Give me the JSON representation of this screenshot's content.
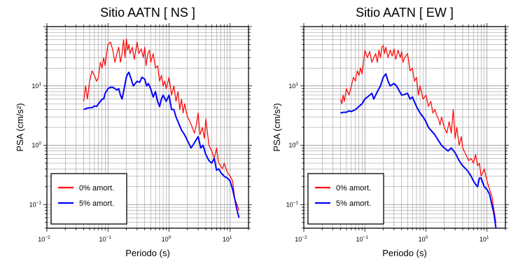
{
  "chart_data": [
    {
      "type": "line",
      "title": "Sitio AATN [ NS ]",
      "xlabel": "Periodo (s)",
      "ylabel": "PSA (cm/s²)",
      "xscale": "log",
      "yscale": "log",
      "xlim": [
        0.01,
        20
      ],
      "ylim": [
        0.04,
        100
      ],
      "x_ticks": [
        {
          "base": "10",
          "exp": "−2",
          "value": 0.01
        },
        {
          "base": "10",
          "exp": "−1",
          "value": 0.1
        },
        {
          "base": "10",
          "exp": "0",
          "value": 1
        },
        {
          "base": "10",
          "exp": "1",
          "value": 10
        }
      ],
      "y_ticks": [
        {
          "base": "10",
          "exp": "−1",
          "value": 0.1
        },
        {
          "base": "10",
          "exp": "0",
          "value": 1
        },
        {
          "base": "10",
          "exp": "1",
          "value": 10
        }
      ],
      "grid": true,
      "legend_position": "bottom-left",
      "series": [
        {
          "name": "0% amort.",
          "color": "#ff0000",
          "x": [
            0.04,
            0.043,
            0.046,
            0.05,
            0.055,
            0.06,
            0.065,
            0.07,
            0.075,
            0.08,
            0.085,
            0.09,
            0.095,
            0.1,
            0.11,
            0.12,
            0.13,
            0.14,
            0.15,
            0.16,
            0.17,
            0.18,
            0.19,
            0.2,
            0.21,
            0.22,
            0.23,
            0.25,
            0.27,
            0.3,
            0.32,
            0.35,
            0.38,
            0.4,
            0.42,
            0.45,
            0.48,
            0.5,
            0.55,
            0.6,
            0.65,
            0.7,
            0.75,
            0.8,
            0.85,
            0.9,
            1.0,
            1.1,
            1.2,
            1.3,
            1.4,
            1.5,
            1.6,
            1.7,
            1.8,
            2.0,
            2.2,
            2.4,
            2.6,
            2.8,
            3.0,
            3.2,
            3.5,
            3.8,
            4.0,
            4.5,
            5.0,
            5.5,
            6.0,
            6.5,
            7.0,
            7.5,
            8.0,
            9.0,
            10.0,
            11.0,
            12.0,
            13.0,
            14.0
          ],
          "y": [
            5.5,
            10,
            6,
            12,
            18,
            15,
            12,
            14,
            25,
            20,
            30,
            22,
            35,
            50,
            55,
            40,
            25,
            35,
            45,
            25,
            35,
            60,
            30,
            62,
            40,
            50,
            35,
            45,
            28,
            55,
            35,
            42,
            30,
            45,
            22,
            35,
            40,
            25,
            35,
            20,
            22,
            12,
            15,
            10,
            12,
            9,
            14,
            7,
            10,
            5.5,
            8,
            4,
            6,
            3.5,
            5,
            3,
            2.5,
            2.0,
            1.6,
            2.2,
            3.5,
            1.5,
            2,
            1.3,
            2.8,
            1.0,
            0.8,
            0.6,
            0.9,
            0.5,
            0.45,
            0.4,
            0.5,
            0.35,
            0.3,
            0.25,
            0.12,
            0.1,
            0.08
          ]
        },
        {
          "name": "5% amort.",
          "color": "#0000ff",
          "x": [
            0.04,
            0.045,
            0.05,
            0.055,
            0.06,
            0.065,
            0.07,
            0.075,
            0.08,
            0.085,
            0.09,
            0.1,
            0.11,
            0.12,
            0.13,
            0.14,
            0.15,
            0.16,
            0.17,
            0.18,
            0.2,
            0.21,
            0.22,
            0.24,
            0.26,
            0.28,
            0.3,
            0.33,
            0.36,
            0.4,
            0.43,
            0.46,
            0.5,
            0.55,
            0.6,
            0.65,
            0.7,
            0.75,
            0.8,
            0.9,
            1.0,
            1.1,
            1.2,
            1.3,
            1.4,
            1.6,
            1.8,
            2.0,
            2.3,
            2.6,
            3.0,
            3.3,
            3.6,
            4.0,
            4.5,
            5.0,
            5.5,
            6.0,
            6.5,
            7.0,
            8.0,
            9.0,
            10.0,
            11.0,
            12.0,
            13.0,
            14.0
          ],
          "y": [
            4.0,
            4.2,
            4.3,
            4.3,
            4.6,
            4.5,
            5.0,
            5.5,
            6.0,
            6.0,
            7.5,
            9.0,
            9.5,
            9.5,
            9.0,
            8.5,
            9.0,
            7.0,
            6.0,
            8.0,
            14,
            16,
            17,
            13,
            10,
            11,
            12,
            11.5,
            14,
            13,
            10,
            11,
            9,
            6.5,
            8.0,
            5.5,
            4.5,
            6,
            7,
            5.5,
            7.0,
            4.0,
            4.0,
            3.0,
            2.5,
            1.8,
            1.5,
            1.2,
            0.9,
            1.1,
            1.4,
            0.9,
            1.0,
            0.7,
            0.55,
            0.5,
            0.6,
            0.38,
            0.4,
            0.35,
            0.3,
            0.28,
            0.25,
            0.18,
            0.12,
            0.08,
            0.06
          ]
        }
      ]
    },
    {
      "type": "line",
      "title": "Sitio AATN [ EW ]",
      "xlabel": "Periodo (s)",
      "ylabel": "PSA (cm/s²)",
      "xscale": "log",
      "yscale": "log",
      "xlim": [
        0.01,
        20
      ],
      "ylim": [
        0.04,
        100
      ],
      "x_ticks": [
        {
          "base": "10",
          "exp": "−2",
          "value": 0.01
        },
        {
          "base": "10",
          "exp": "−1",
          "value": 0.1
        },
        {
          "base": "10",
          "exp": "0",
          "value": 1
        },
        {
          "base": "10",
          "exp": "1",
          "value": 10
        }
      ],
      "y_ticks": [
        {
          "base": "10",
          "exp": "−1",
          "value": 0.1
        },
        {
          "base": "10",
          "exp": "0",
          "value": 1
        },
        {
          "base": "10",
          "exp": "1",
          "value": 10
        }
      ],
      "grid": true,
      "legend_position": "bottom-left",
      "series": [
        {
          "name": "0% amort.",
          "color": "#ff0000",
          "x": [
            0.04,
            0.042,
            0.044,
            0.046,
            0.05,
            0.055,
            0.06,
            0.065,
            0.07,
            0.075,
            0.08,
            0.085,
            0.09,
            0.095,
            0.1,
            0.11,
            0.12,
            0.13,
            0.14,
            0.15,
            0.16,
            0.17,
            0.18,
            0.19,
            0.2,
            0.21,
            0.22,
            0.24,
            0.26,
            0.28,
            0.3,
            0.32,
            0.35,
            0.38,
            0.4,
            0.42,
            0.45,
            0.5,
            0.55,
            0.6,
            0.65,
            0.7,
            0.75,
            0.8,
            0.9,
            1.0,
            1.1,
            1.2,
            1.3,
            1.4,
            1.5,
            1.6,
            1.7,
            1.8,
            2.0,
            2.2,
            2.4,
            2.6,
            2.8,
            3.0,
            3.2,
            3.5,
            3.8,
            4.0,
            4.5,
            5.0,
            5.5,
            6.0,
            6.5,
            7.0,
            7.5,
            8.0,
            9.0,
            10.0,
            11.0,
            12.0,
            13.0,
            14.0
          ],
          "y": [
            6,
            5,
            7,
            5.5,
            9,
            7,
            10,
            14,
            12,
            18,
            15,
            20,
            16,
            25,
            40,
            30,
            38,
            25,
            30,
            35,
            25,
            40,
            30,
            45,
            48,
            35,
            45,
            30,
            40,
            32,
            42,
            28,
            40,
            30,
            38,
            25,
            30,
            35,
            18,
            20,
            12,
            14,
            7,
            10,
            6,
            7,
            4.5,
            5.5,
            3.5,
            4.0,
            3.2,
            2.8,
            2.2,
            3.0,
            2.0,
            1.6,
            2.5,
            1.6,
            4.0,
            1.3,
            2.0,
            1.0,
            1.4,
            0.9,
            0.7,
            0.55,
            0.6,
            0.5,
            0.7,
            0.45,
            0.5,
            0.3,
            0.4,
            0.25,
            0.18,
            0.14,
            0.08,
            0.05
          ]
        },
        {
          "name": "5% amort.",
          "color": "#0000ff",
          "x": [
            0.04,
            0.045,
            0.05,
            0.055,
            0.06,
            0.07,
            0.08,
            0.09,
            0.1,
            0.11,
            0.12,
            0.13,
            0.14,
            0.15,
            0.16,
            0.18,
            0.2,
            0.22,
            0.24,
            0.26,
            0.28,
            0.3,
            0.33,
            0.36,
            0.4,
            0.45,
            0.5,
            0.55,
            0.6,
            0.7,
            0.8,
            0.9,
            1.0,
            1.1,
            1.2,
            1.4,
            1.6,
            1.8,
            2.0,
            2.3,
            2.6,
            3.0,
            3.5,
            4.0,
            4.5,
            5.0,
            5.5,
            6.0,
            6.5,
            7.0,
            7.5,
            8.0,
            9.0,
            10.0,
            11.0,
            12.0,
            13.0,
            14.0
          ],
          "y": [
            3.5,
            3.6,
            3.6,
            3.8,
            3.7,
            4.0,
            4.5,
            5.0,
            6.0,
            6.5,
            7.0,
            7.5,
            6.0,
            7.0,
            8.0,
            10,
            14,
            16,
            12,
            10,
            10.5,
            11,
            10,
            8.5,
            7.0,
            7.2,
            7.5,
            6.0,
            6.5,
            4.5,
            3.5,
            3.0,
            2.5,
            2.0,
            1.8,
            1.5,
            1.2,
            1.0,
            0.9,
            0.8,
            0.9,
            0.75,
            0.55,
            0.45,
            0.4,
            0.35,
            0.3,
            0.25,
            0.22,
            0.2,
            0.28,
            0.28,
            0.2,
            0.18,
            0.15,
            0.1,
            0.07,
            0.04
          ]
        }
      ]
    }
  ]
}
